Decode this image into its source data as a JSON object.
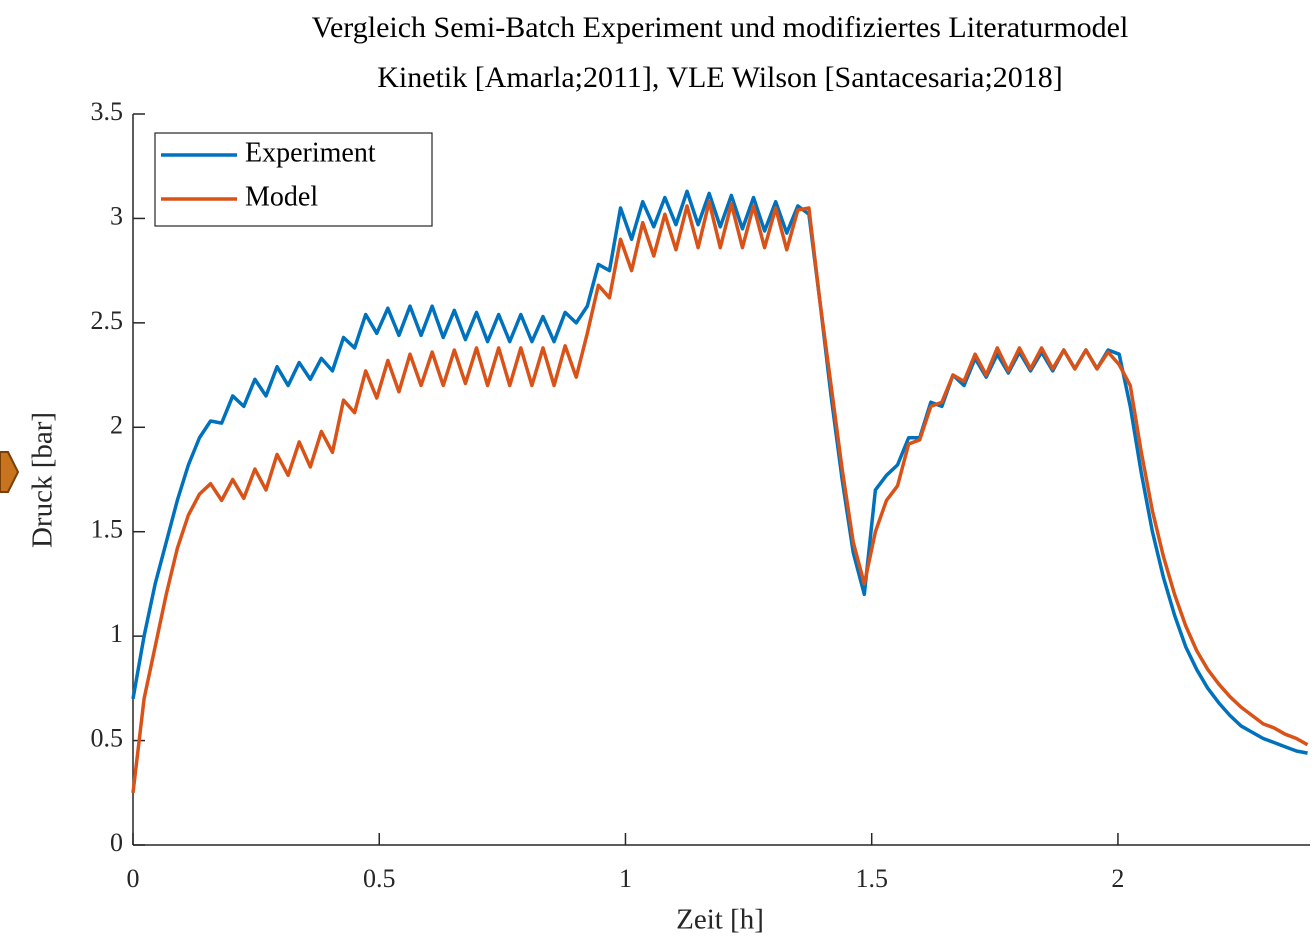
{
  "chart_data": {
    "type": "line",
    "title": "Vergleich Semi-Batch Experiment und modifiziertes Literaturmodel",
    "subtitle": "Kinetik [Amarla;2011], VLE Wilson [Santacesaria;2018]",
    "xlabel": "Zeit [h]",
    "ylabel": "Druck [bar]",
    "xlim": [
      0,
      2.39
    ],
    "ylim": [
      0,
      3.5
    ],
    "xticks": [
      0,
      0.5,
      1,
      1.5,
      2
    ],
    "yticks": [
      0,
      0.5,
      1,
      1.5,
      2,
      2.5,
      3,
      3.5
    ],
    "legend": "upper left",
    "x": [
      0,
      0.0225,
      0.045,
      0.0675,
      0.09,
      0.1125,
      0.135,
      0.1575,
      0.18,
      0.2025,
      0.225,
      0.2475,
      0.27,
      0.2925,
      0.315,
      0.3375,
      0.36,
      0.3825,
      0.405,
      0.4275,
      0.45,
      0.4725,
      0.495,
      0.5175,
      0.54,
      0.5625,
      0.585,
      0.6075,
      0.63,
      0.6525,
      0.675,
      0.6975,
      0.72,
      0.7425,
      0.765,
      0.7875,
      0.81,
      0.8325,
      0.855,
      0.8775,
      0.9,
      0.9225,
      0.945,
      0.9675,
      0.99,
      1.0125,
      1.035,
      1.0575,
      1.08,
      1.1025,
      1.125,
      1.1475,
      1.17,
      1.1925,
      1.215,
      1.2375,
      1.26,
      1.2825,
      1.305,
      1.3275,
      1.35,
      1.3725,
      1.395,
      1.4175,
      1.44,
      1.4625,
      1.485,
      1.5075,
      1.53,
      1.5525,
      1.575,
      1.5975,
      1.62,
      1.6425,
      1.665,
      1.6875,
      1.71,
      1.7325,
      1.755,
      1.7775,
      1.8,
      1.8225,
      1.845,
      1.8675,
      1.89,
      1.9125,
      1.935,
      1.9575,
      1.98,
      2.0025,
      2.025,
      2.0475,
      2.07,
      2.0925,
      2.115,
      2.1375,
      2.16,
      2.1825,
      2.205,
      2.2275,
      2.25,
      2.2725,
      2.295,
      2.3175,
      2.34,
      2.3625,
      2.385
    ],
    "series": [
      {
        "name": "Experiment",
        "color": "#0072BD",
        "values": [
          0.7,
          1.0,
          1.25,
          1.45,
          1.65,
          1.82,
          1.95,
          2.03,
          2.02,
          2.15,
          2.1,
          2.23,
          2.15,
          2.29,
          2.2,
          2.31,
          2.23,
          2.33,
          2.27,
          2.43,
          2.38,
          2.54,
          2.45,
          2.57,
          2.44,
          2.58,
          2.44,
          2.58,
          2.43,
          2.56,
          2.42,
          2.55,
          2.41,
          2.54,
          2.41,
          2.54,
          2.41,
          2.53,
          2.41,
          2.55,
          2.5,
          2.58,
          2.78,
          2.75,
          3.05,
          2.9,
          3.08,
          2.96,
          3.1,
          2.97,
          3.13,
          2.97,
          3.12,
          2.96,
          3.11,
          2.95,
          3.1,
          2.94,
          3.08,
          2.93,
          3.06,
          3.02,
          2.6,
          2.15,
          1.75,
          1.4,
          1.2,
          1.7,
          1.77,
          1.82,
          1.95,
          1.95,
          2.12,
          2.1,
          2.25,
          2.2,
          2.33,
          2.24,
          2.35,
          2.26,
          2.36,
          2.27,
          2.36,
          2.27,
          2.37,
          2.28,
          2.37,
          2.28,
          2.37,
          2.35,
          2.1,
          1.78,
          1.5,
          1.28,
          1.1,
          0.95,
          0.84,
          0.75,
          0.68,
          0.62,
          0.57,
          0.54,
          0.51,
          0.49,
          0.47,
          0.45,
          0.44
        ]
      },
      {
        "name": "Model",
        "color": "#D95319",
        "values": [
          0.25,
          0.7,
          0.95,
          1.2,
          1.42,
          1.58,
          1.68,
          1.73,
          1.65,
          1.75,
          1.66,
          1.8,
          1.7,
          1.87,
          1.77,
          1.93,
          1.81,
          1.98,
          1.88,
          2.13,
          2.07,
          2.27,
          2.14,
          2.32,
          2.17,
          2.35,
          2.2,
          2.36,
          2.2,
          2.37,
          2.21,
          2.38,
          2.2,
          2.38,
          2.2,
          2.38,
          2.2,
          2.38,
          2.2,
          2.39,
          2.24,
          2.45,
          2.68,
          2.62,
          2.9,
          2.75,
          2.98,
          2.82,
          3.02,
          2.85,
          3.06,
          2.86,
          3.08,
          2.86,
          3.07,
          2.86,
          3.06,
          2.86,
          3.05,
          2.85,
          3.04,
          3.05,
          2.6,
          2.2,
          1.8,
          1.45,
          1.25,
          1.5,
          1.65,
          1.72,
          1.92,
          1.94,
          2.1,
          2.12,
          2.25,
          2.22,
          2.35,
          2.25,
          2.38,
          2.27,
          2.38,
          2.28,
          2.38,
          2.28,
          2.37,
          2.28,
          2.37,
          2.28,
          2.36,
          2.3,
          2.2,
          1.88,
          1.6,
          1.38,
          1.2,
          1.05,
          0.93,
          0.84,
          0.77,
          0.71,
          0.66,
          0.62,
          0.58,
          0.56,
          0.53,
          0.51,
          0.48
        ]
      }
    ]
  }
}
